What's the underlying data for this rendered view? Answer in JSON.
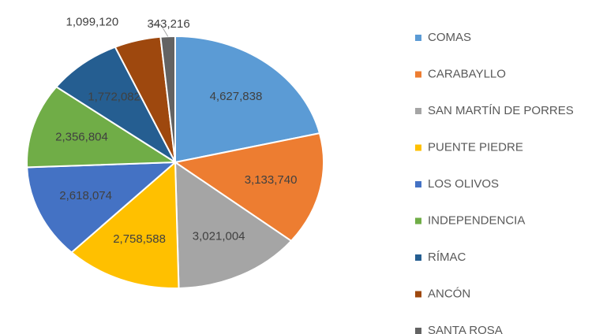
{
  "chart_data": {
    "type": "pie",
    "categories": [
      "COMAS",
      "CARABAYLLO",
      "SAN MARTÍN DE PORRES",
      "PUENTE PIEDRE",
      "LOS OLIVOS",
      "INDEPENDENCIA",
      "RÍMAC",
      "ANCÓN",
      "SANTA ROSA"
    ],
    "values": [
      4627838,
      3133740,
      3021004,
      2758588,
      2618074,
      2356804,
      1772082,
      1099120,
      343216
    ],
    "value_labels": [
      "4,627,838",
      "3,133,740",
      "3,021,004",
      "2,758,588",
      "2,618,074",
      "2,356,804",
      "1,772,082",
      "1,099,120",
      "343,216"
    ],
    "colors": [
      "#5b9bd5",
      "#ed7d31",
      "#a5a5a5",
      "#ffc000",
      "#4472c4",
      "#70ad47",
      "#255e91",
      "#9e480e",
      "#636363"
    ],
    "legend": "right"
  }
}
